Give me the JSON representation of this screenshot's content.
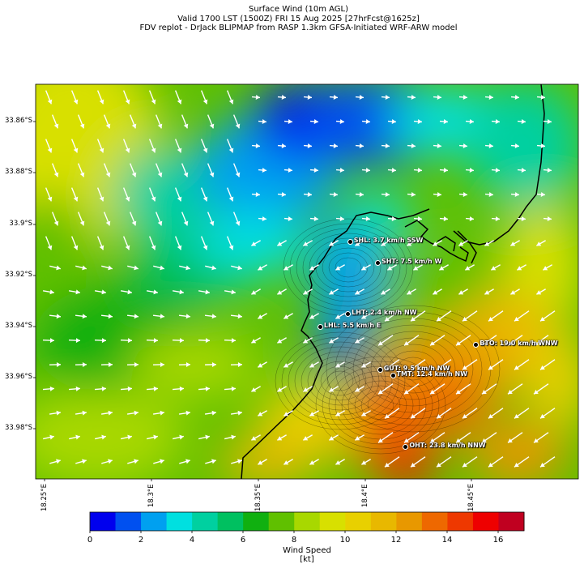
{
  "header": {
    "title": "Surface Wind (10m AGL)",
    "valid": "Valid 1700 LST (1500Z) FRI 15 Aug 2025 [27hrFcst@1625z]",
    "source": "FDV replot - DrJack BLIPMAP from RASP 1.3km GFSA-Initiated WRF-ARW model"
  },
  "map": {
    "lat_labels": [
      "33.86°S",
      "33.88°S",
      "33.9°S",
      "33.92°S",
      "33.94°S",
      "33.96°S",
      "33.98°S"
    ],
    "lon_labels": [
      "18.25°E",
      "18.3°E",
      "18.35°E",
      "18.4°E",
      "18.45°E"
    ],
    "stations": [
      {
        "code": "SHL",
        "label": "SHL: 3.7 km/h SSW",
        "lon": 18.393,
        "lat": -33.907
      },
      {
        "code": "SHT",
        "label": "SHT: 7.5 km/h W",
        "lon": 18.406,
        "lat": -33.915
      },
      {
        "code": "LHT",
        "label": "LHT: 2.4 km/h NW",
        "lon": 18.392,
        "lat": -33.935
      },
      {
        "code": "LHL",
        "label": "LHL: 5.5 km/h E",
        "lon": 18.379,
        "lat": -33.94
      },
      {
        "code": "BTO",
        "label": "BTO: 19.0 km/h WNW",
        "lon": 18.452,
        "lat": -33.947
      },
      {
        "code": "GUT",
        "label": "GUT: 9.5 km/h NW",
        "lon": 18.407,
        "lat": -33.957
      },
      {
        "code": "TMT",
        "label": "TMT: 12.4 km/h NW",
        "lon": 18.413,
        "lat": -33.959
      },
      {
        "code": "OHT",
        "label": "OHT: 23.8 km/h NNW",
        "lon": 18.419,
        "lat": -33.987
      }
    ]
  },
  "colorbar": {
    "label": "Wind Speed [kt]",
    "ticks": [
      "0",
      "2",
      "4",
      "6",
      "8",
      "10",
      "12",
      "14",
      "16"
    ],
    "colors": [
      "#0000ee",
      "#0050f0",
      "#00a0f0",
      "#00e0e0",
      "#00d0a0",
      "#00c060",
      "#10b010",
      "#60c000",
      "#a8d800",
      "#d8e000",
      "#e8d000",
      "#e8b800",
      "#e89800",
      "#ee6800",
      "#ee3800",
      "#ee0000",
      "#c00020"
    ]
  }
}
